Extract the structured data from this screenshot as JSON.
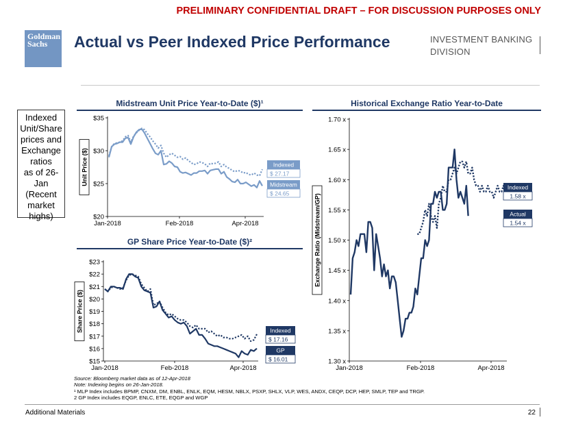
{
  "header": {
    "draft_notice": "PRELIMINARY CONFIDENTIAL DRAFT – FOR DISCUSSION PURPOSES ONLY",
    "logo_line1": "Goldman",
    "logo_line2": "Sachs",
    "title": "Actual vs Peer Indexed Price Performance",
    "division_line1": "INVESTMENT BANKING",
    "division_line2": "DIVISION"
  },
  "sidebar": {
    "lines": [
      "Indexed",
      "Unit/Share",
      "prices and",
      "Exchange",
      "ratios",
      "as of 26-",
      "Jan",
      "(Recent",
      "market",
      "highs)"
    ]
  },
  "chart_data": [
    {
      "id": "midstream",
      "type": "line",
      "title": "Midstream Unit Price Year-to-Date ($)¹",
      "ylabel": "Unit Price ($)",
      "ylim": [
        20,
        35
      ],
      "yticks": [
        "$35",
        "$30",
        "$25",
        "$20"
      ],
      "xlabels": [
        "Jan-2018",
        "Feb-2018",
        "Apr-2018"
      ],
      "series": [
        {
          "name": "Indexed",
          "style": "dotted",
          "color": "#7a9cc8",
          "values": [
            29.2,
            30.6,
            31.1,
            31.2,
            31.3,
            31.5,
            32.1,
            32.3,
            31.3,
            32.2,
            32.7,
            33.1,
            33.4,
            33.2,
            32.6,
            32.1,
            31.5,
            31.0,
            30.4,
            30.8,
            29.6,
            29.0,
            29.4,
            29.6,
            29.3,
            29.0,
            29.1,
            28.7,
            28.9,
            28.5,
            28.2,
            27.9,
            28.0,
            28.3,
            28.2,
            28.0,
            27.6,
            28.1,
            28.0,
            28.1,
            28.3,
            27.6,
            27.9,
            27.5,
            27.3,
            27.0,
            26.8,
            27.0,
            26.9,
            26.6,
            26.7,
            26.4,
            26.3,
            26.6,
            26.3,
            26.2,
            27.17
          ],
          "end_label": "$ 27.17"
        },
        {
          "name": "Midstream",
          "style": "solid",
          "color": "#7a9cc8",
          "values": [
            29.0,
            30.6,
            31.0,
            31.1,
            31.3,
            31.3,
            31.9,
            32.0,
            31.0,
            32.1,
            32.8,
            33.2,
            33.3,
            32.7,
            31.9,
            31.1,
            30.3,
            29.6,
            29.4,
            30.0,
            27.9,
            28.0,
            28.4,
            28.1,
            27.6,
            27.5,
            26.8,
            26.6,
            26.7,
            26.5,
            26.3,
            26.6,
            26.6,
            26.9,
            26.9,
            27.0,
            26.5,
            27.0,
            27.1,
            27.2,
            27.2,
            26.5,
            26.8,
            26.0,
            25.7,
            25.3,
            25.2,
            25.6,
            25.0,
            25.0,
            25.2,
            24.9,
            24.6,
            24.8,
            24.4,
            25.4,
            24.65
          ],
          "end_label": "$ 24.65"
        }
      ]
    },
    {
      "id": "gp_share",
      "type": "line",
      "title": "GP Share Price Year-to-Date ($)²",
      "ylabel": "Share Price ($)",
      "ylim": [
        15,
        23
      ],
      "yticks": [
        "$23",
        "$22",
        "$21",
        "$20",
        "$19",
        "$18",
        "$17",
        "$16",
        "$15"
      ],
      "xlabels": [
        "Jan-2018",
        "Feb-2018",
        "Apr-2018"
      ],
      "series": [
        {
          "name": "Indexed",
          "style": "dotted",
          "color": "#1f3864",
          "values": [
            20.8,
            20.6,
            20.9,
            21.0,
            20.9,
            20.8,
            20.9,
            21.5,
            21.9,
            22.0,
            21.9,
            21.8,
            21.2,
            20.9,
            20.6,
            20.8,
            19.5,
            19.6,
            19.8,
            19.3,
            18.9,
            18.7,
            18.8,
            18.6,
            18.4,
            18.3,
            18.3,
            18.1,
            17.8,
            17.7,
            17.9,
            17.6,
            17.6,
            17.6,
            17.3,
            17.4,
            17.2,
            17.0,
            17.1,
            16.9,
            16.9,
            16.8,
            16.8,
            16.9,
            17.0,
            17.1,
            16.8,
            17.0,
            16.6,
            16.7,
            17.16
          ],
          "end_label": "$ 17.16"
        },
        {
          "name": "GP",
          "style": "solid",
          "color": "#1f3864",
          "values": [
            20.8,
            20.6,
            21.0,
            21.0,
            20.9,
            20.9,
            20.8,
            21.6,
            22.0,
            22.0,
            21.8,
            21.7,
            21.0,
            20.7,
            20.6,
            20.5,
            19.3,
            19.4,
            19.8,
            19.1,
            18.8,
            18.5,
            18.6,
            18.3,
            18.1,
            18.0,
            18.1,
            17.8,
            17.2,
            17.4,
            17.6,
            17.1,
            17.1,
            16.8,
            16.4,
            16.3,
            16.2,
            16.2,
            16.1,
            16.0,
            15.9,
            15.8,
            15.7,
            15.6,
            15.3,
            15.8,
            15.6,
            15.5,
            15.9,
            15.8,
            16.01
          ],
          "end_label": "$ 16.01"
        }
      ]
    },
    {
      "id": "exchange_ratio",
      "type": "line",
      "title": "Historical Exchange Ratio Year-to-Date",
      "ylabel": "Exchange Ratio (Midstream/GP)",
      "ylim": [
        1.3,
        1.7
      ],
      "yticks": [
        "1.70 x",
        "1.65 x",
        "1.60 x",
        "1.55 x",
        "1.50 x",
        "1.45 x",
        "1.40 x",
        "1.35 x",
        "1.30 x"
      ],
      "xlabels": [
        "Jan-2018",
        "Feb-2018",
        "Apr-2018"
      ],
      "series": [
        {
          "name": "Indexed",
          "style": "dotted",
          "color": "#1f3864",
          "values": [
            1.51,
            1.51,
            1.52,
            1.53,
            1.55,
            1.54,
            1.56,
            1.54,
            1.53,
            1.54,
            1.52,
            1.56,
            1.57,
            1.59,
            1.58,
            1.58,
            1.6,
            1.6,
            1.61,
            1.62,
            1.61,
            1.62,
            1.63,
            1.63,
            1.62,
            1.63,
            1.61,
            1.61,
            1.62,
            1.6,
            1.59,
            1.59,
            1.58,
            1.59,
            1.58,
            1.58,
            1.59,
            1.58,
            1.58,
            1.57,
            1.58,
            1.59,
            1.58,
            1.58,
            1.59,
            1.58
          ],
          "end_label": "1.58 x",
          "start_index": 34
        },
        {
          "name": "Actual",
          "style": "solid",
          "color": "#1f3864",
          "values": [
            1.41,
            1.47,
            1.48,
            1.5,
            1.49,
            1.51,
            1.51,
            1.51,
            1.48,
            1.53,
            1.53,
            1.52,
            1.45,
            1.51,
            1.49,
            1.47,
            1.44,
            1.46,
            1.44,
            1.45,
            1.42,
            1.44,
            1.44,
            1.43,
            1.4,
            1.37,
            1.34,
            1.35,
            1.37,
            1.37,
            1.38,
            1.38,
            1.39,
            1.42,
            1.41,
            1.44,
            1.47,
            1.47,
            1.5,
            1.49,
            1.5,
            1.56,
            1.56,
            1.58,
            1.57,
            1.58,
            1.58,
            1.55,
            1.55,
            1.56,
            1.62,
            1.62,
            1.62,
            1.65,
            1.6,
            1.57,
            1.58,
            1.57,
            1.56,
            1.59,
            1.54
          ],
          "end_label": "1.54 x"
        }
      ]
    }
  ],
  "footnotes": {
    "source": "Source: Bloomberg market data as of 12-Apr-2018",
    "note": "Note: Indexing begins on 26-Jan-2018.",
    "fn1": "¹ MLP Index includes BPMP, CNXM, DM, ENBL, ENLK, EQM, HESM, NBLX, PSXP, SHLX, VLP, WES, ANDX, CEQP, DCP, HEP, SMLP, TEP and TRGP.",
    "fn2": "2 GP Index includes EQGP, ENLC, ETE, EQGP and WGP"
  },
  "footer": {
    "left": "Additional Materials",
    "page": "22"
  }
}
